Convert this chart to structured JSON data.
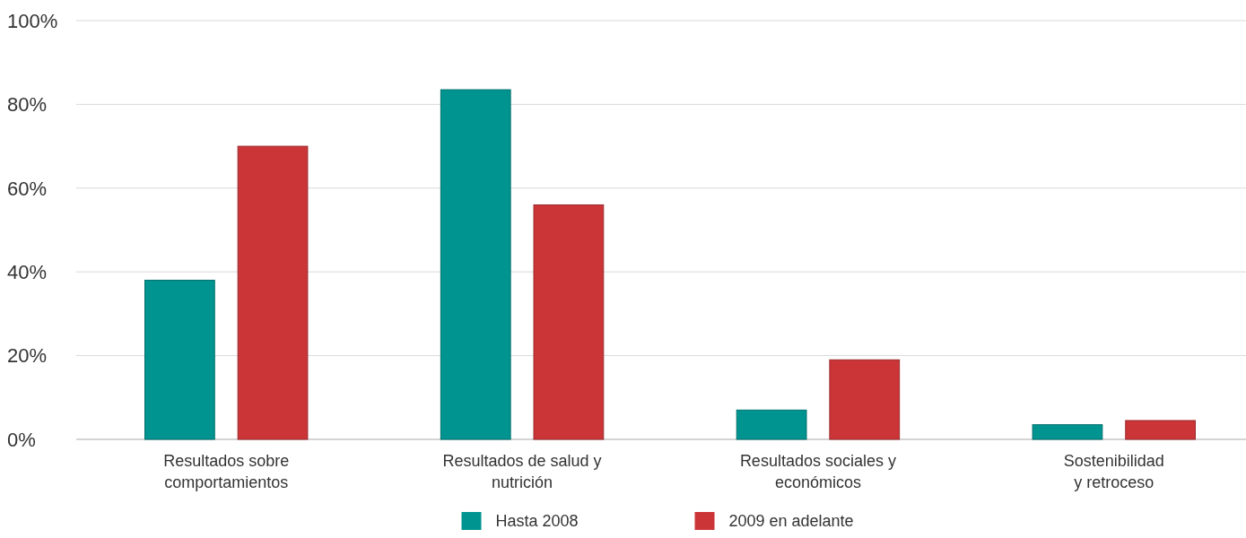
{
  "chart_data": {
    "type": "bar",
    "categories": [
      "Resultados sobre\ncomportamientos",
      "Resultados de salud y\nnutrición",
      "Resultados sociales y\neconómicos",
      "Sostenibilidad\ny retroceso"
    ],
    "series": [
      {
        "name": "Hasta 2008",
        "color": "#009490",
        "values": [
          38,
          83.5,
          7,
          3.5
        ]
      },
      {
        "name": "2009 en adelante",
        "color": "#cc3538",
        "values": [
          70,
          56,
          19,
          4.5
        ]
      }
    ],
    "ylim": [
      0,
      100
    ],
    "yticks": [
      {
        "value": 0,
        "label": "0%"
      },
      {
        "value": 20,
        "label": "20%"
      },
      {
        "value": 40,
        "label": "40%"
      },
      {
        "value": 60,
        "label": "60%"
      },
      {
        "value": 80,
        "label": "80%"
      },
      {
        "value": 100,
        "label": "100%"
      }
    ],
    "grid": "y",
    "legend": "bottom"
  }
}
